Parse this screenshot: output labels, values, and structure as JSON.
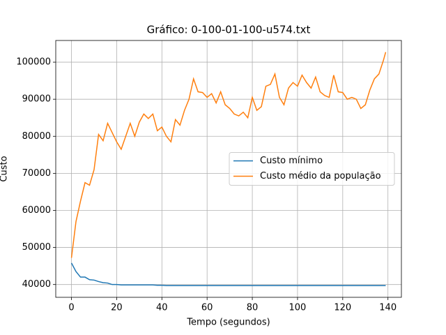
{
  "chart_data": {
    "type": "line",
    "title": "Gráfico: 0-100-01-100-u574.txt",
    "x_label": "Tempo (segundos)",
    "y_label": "Custo",
    "x": [
      0,
      2,
      4,
      6,
      8,
      10,
      12,
      14,
      16,
      18,
      20,
      22,
      24,
      26,
      28,
      30,
      32,
      34,
      36,
      38,
      40,
      42,
      44,
      46,
      48,
      50,
      52,
      54,
      56,
      58,
      60,
      62,
      64,
      66,
      68,
      70,
      72,
      74,
      76,
      78,
      80,
      82,
      84,
      86,
      88,
      90,
      92,
      94,
      96,
      98,
      100,
      102,
      104,
      106,
      108,
      110,
      112,
      114,
      116,
      118,
      120,
      122,
      124,
      126,
      128,
      130,
      132,
      134,
      136,
      138,
      139
    ],
    "series": [
      {
        "name": "Custo mínimo",
        "color": "#1f77b4",
        "values": [
          45800,
          43500,
          42000,
          42000,
          41300,
          41200,
          40800,
          40500,
          40400,
          40000,
          40000,
          39900,
          39900,
          39900,
          39900,
          39900,
          39900,
          39900,
          39900,
          39800,
          39800,
          39700,
          39700,
          39700,
          39700,
          39700,
          39700,
          39700,
          39700,
          39700,
          39700,
          39700,
          39700,
          39700,
          39700,
          39700,
          39700,
          39700,
          39700,
          39700,
          39700,
          39700,
          39700,
          39700,
          39700,
          39700,
          39700,
          39700,
          39700,
          39700,
          39700,
          39700,
          39700,
          39700,
          39700,
          39700,
          39700,
          39700,
          39700,
          39700,
          39700,
          39700,
          39700,
          39700,
          39700,
          39700,
          39700,
          39700,
          39700,
          39700,
          39700
        ]
      },
      {
        "name": "Custo médio da população",
        "color": "#ff7f0e",
        "values": [
          47200,
          57000,
          62500,
          67500,
          66800,
          71000,
          80500,
          78800,
          83500,
          81000,
          78500,
          76500,
          80000,
          83500,
          80000,
          83800,
          86000,
          84800,
          86000,
          81500,
          82500,
          80000,
          78500,
          84500,
          83000,
          87000,
          90000,
          95500,
          92000,
          91800,
          90500,
          91500,
          89000,
          92000,
          88500,
          87500,
          86000,
          85500,
          86500,
          85000,
          90500,
          87000,
          88000,
          93500,
          94000,
          96800,
          90500,
          88500,
          93000,
          94500,
          93500,
          96500,
          94500,
          93000,
          96000,
          92000,
          91000,
          90500,
          96500,
          92000,
          91800,
          90000,
          90500,
          90000,
          87500,
          88500,
          92500,
          95500,
          96800,
          100500,
          102700
        ]
      }
    ],
    "xlim": [
      -6.95,
      145.95
    ],
    "xticks": [
      0,
      20,
      40,
      60,
      80,
      100,
      120,
      140
    ],
    "ylim": [
      36550,
      105850
    ],
    "yticks": [
      40000,
      50000,
      60000,
      70000,
      80000,
      90000,
      100000
    ],
    "grid": true,
    "legend": "center right"
  }
}
